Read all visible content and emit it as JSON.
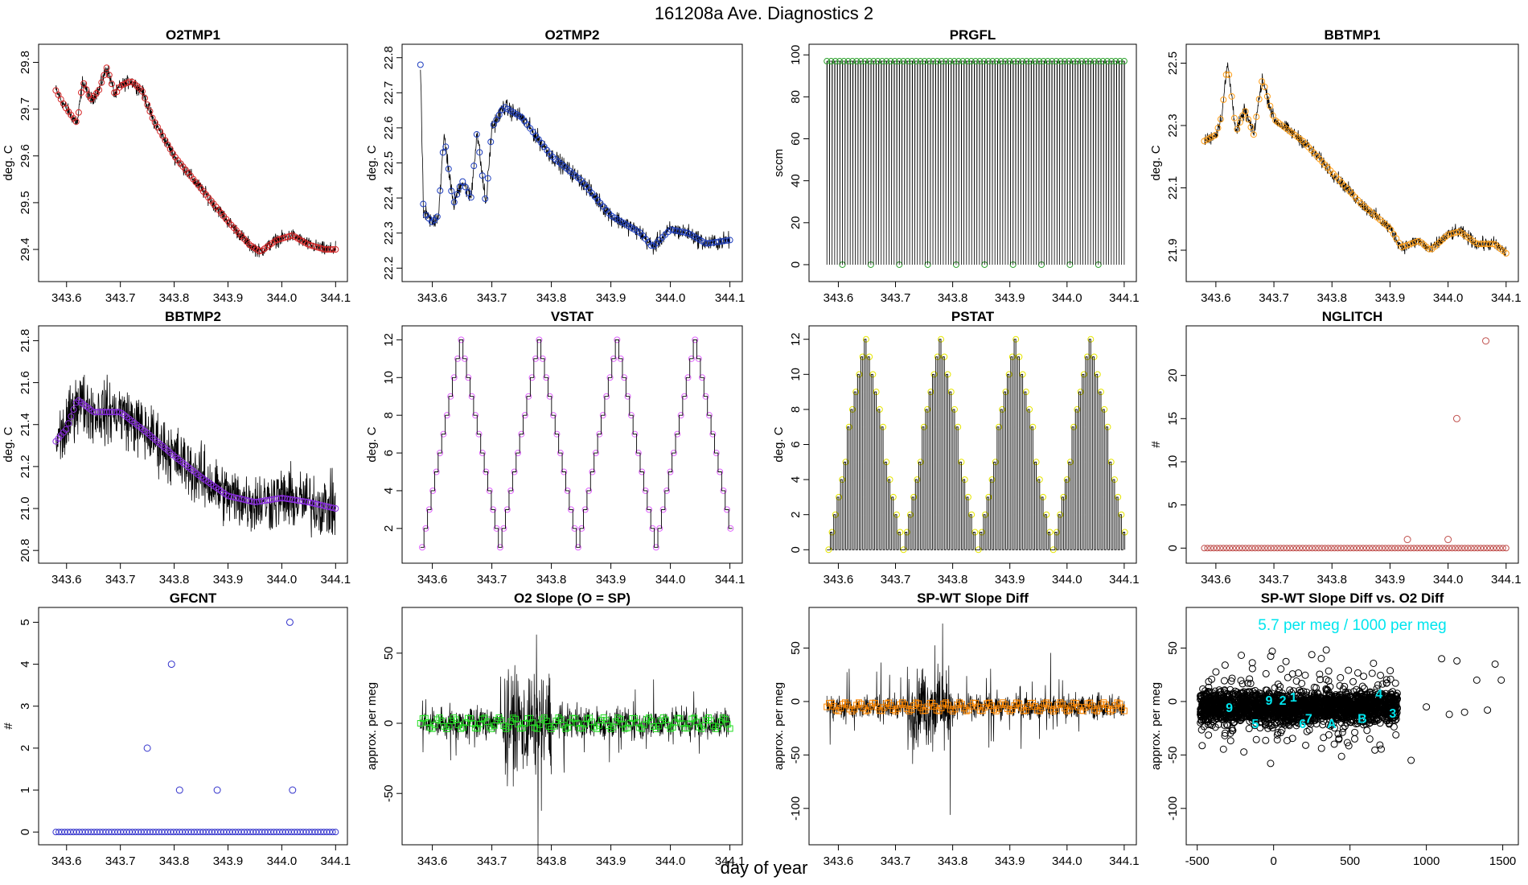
{
  "figure": {
    "title": "161208a   Ave. Diagnostics 2",
    "xlabel": "day of year"
  },
  "chart_data": [
    {
      "type": "line",
      "title": "O2TMP1",
      "ylabel": "deg. C",
      "xlim": [
        343.56,
        344.11
      ],
      "ylim": [
        29.345,
        29.825
      ],
      "xticks": [
        343.6,
        343.7,
        343.8,
        343.9,
        344.0,
        344.1
      ],
      "xticklabels": [
        "343.6",
        "343.7",
        "343.8",
        "343.9",
        "344.0",
        "344.1"
      ],
      "yticks": [
        29.4,
        29.5,
        29.6,
        29.7,
        29.8
      ],
      "yticklabels": [
        "29.4",
        "29.5",
        "29.6",
        "29.7",
        "29.8"
      ],
      "marker_color": "#d62728",
      "x": [
        343.58,
        343.6,
        343.62,
        343.63,
        343.645,
        343.66,
        343.675,
        343.69,
        343.7,
        343.72,
        343.74,
        343.76,
        343.8,
        343.85,
        343.9,
        343.94,
        343.96,
        343.99,
        344.02,
        344.05,
        344.08,
        344.1
      ],
      "y": [
        29.74,
        29.7,
        29.67,
        29.76,
        29.72,
        29.74,
        29.79,
        29.73,
        29.75,
        29.76,
        29.74,
        29.68,
        29.6,
        29.53,
        29.46,
        29.41,
        29.395,
        29.42,
        29.43,
        29.41,
        29.4,
        29.4
      ],
      "noise": 0.012
    },
    {
      "type": "line",
      "title": "O2TMP2",
      "ylabel": "deg. C",
      "xlim": [
        343.56,
        344.11
      ],
      "ylim": [
        22.18,
        22.82
      ],
      "xticks": [
        343.6,
        343.7,
        343.8,
        343.9,
        344.0,
        344.1
      ],
      "xticklabels": [
        "343.6",
        "343.7",
        "343.8",
        "343.9",
        "344.0",
        "344.1"
      ],
      "yticks": [
        22.2,
        22.3,
        22.4,
        22.5,
        22.6,
        22.7,
        22.8
      ],
      "yticklabels": [
        "22.2",
        "22.3",
        "22.4",
        "22.5",
        "22.6",
        "22.7",
        "22.8"
      ],
      "marker_color": "#1f3fbf",
      "x": [
        343.58,
        343.585,
        343.6,
        343.61,
        343.62,
        343.635,
        343.65,
        343.665,
        343.675,
        343.69,
        343.7,
        343.72,
        343.75,
        343.8,
        343.85,
        343.9,
        343.95,
        343.97,
        344.0,
        344.03,
        344.06,
        344.1
      ],
      "y": [
        22.78,
        22.36,
        22.33,
        22.35,
        22.58,
        22.38,
        22.45,
        22.4,
        22.59,
        22.38,
        22.6,
        22.66,
        22.63,
        22.52,
        22.45,
        22.35,
        22.3,
        22.26,
        22.31,
        22.3,
        22.27,
        22.28
      ],
      "noise": 0.02
    },
    {
      "type": "line",
      "title": "PRGFL",
      "ylabel": "sccm",
      "xlim": [
        343.56,
        344.11
      ],
      "ylim": [
        -5,
        102
      ],
      "xticks": [
        343.6,
        343.7,
        343.8,
        343.9,
        344.0,
        344.1
      ],
      "xticklabels": [
        "343.6",
        "343.7",
        "343.8",
        "343.9",
        "344.0",
        "344.1"
      ],
      "yticks": [
        0,
        20,
        40,
        60,
        80,
        100
      ],
      "yticklabels": [
        "0",
        "20",
        "40",
        "60",
        "80",
        "100"
      ],
      "marker_color": "#2ca02c",
      "pattern": "square",
      "high": 97,
      "low": 0
    },
    {
      "type": "line",
      "title": "BBTMP1",
      "ylabel": "deg. C",
      "xlim": [
        343.56,
        344.11
      ],
      "ylim": [
        21.82,
        22.54
      ],
      "xticks": [
        343.6,
        343.7,
        343.8,
        343.9,
        344.0,
        344.1
      ],
      "xticklabels": [
        "343.6",
        "343.7",
        "343.8",
        "343.9",
        "344.0",
        "344.1"
      ],
      "yticks": [
        21.9,
        22.1,
        22.3,
        22.5
      ],
      "yticklabels": [
        "21.9",
        "22.1",
        "22.3",
        "22.5"
      ],
      "marker_color": "#ff9f1a",
      "x": [
        343.58,
        343.6,
        343.61,
        343.62,
        343.635,
        343.65,
        343.665,
        343.68,
        343.7,
        343.75,
        343.8,
        343.85,
        343.9,
        343.92,
        343.95,
        343.97,
        344.0,
        344.02,
        344.05,
        344.08,
        344.1
      ],
      "y": [
        22.25,
        22.27,
        22.33,
        22.5,
        22.28,
        22.35,
        22.27,
        22.45,
        22.32,
        22.25,
        22.15,
        22.05,
        21.97,
        21.91,
        21.93,
        21.9,
        21.95,
        21.96,
        21.92,
        21.92,
        21.89
      ],
      "noise": 0.018
    },
    {
      "type": "line",
      "title": "BBTMP2",
      "ylabel": "deg. C",
      "xlim": [
        343.56,
        344.11
      ],
      "ylim": [
        20.77,
        21.84
      ],
      "xticks": [
        343.6,
        343.7,
        343.8,
        343.9,
        344.0,
        344.1
      ],
      "xticklabels": [
        "343.6",
        "343.7",
        "343.8",
        "343.9",
        "344.0",
        "344.1"
      ],
      "yticks": [
        20.8,
        21.0,
        21.2,
        21.4,
        21.6,
        21.8
      ],
      "yticklabels": [
        "20.8",
        "21.0",
        "21.2",
        "21.4",
        "21.6",
        "21.8"
      ],
      "marker_color": "#8a2be2",
      "x": [
        343.58,
        343.6,
        343.62,
        343.65,
        343.7,
        343.75,
        343.8,
        343.85,
        343.9,
        343.95,
        344.0,
        344.05,
        344.1
      ],
      "y": [
        21.32,
        21.38,
        21.52,
        21.46,
        21.46,
        21.36,
        21.25,
        21.15,
        21.06,
        21.03,
        21.05,
        21.03,
        21.0
      ],
      "noise": 0.12
    },
    {
      "type": "line",
      "title": "VSTAT",
      "ylabel": "deg. C",
      "xlim": [
        343.56,
        344.11
      ],
      "ylim": [
        0.5,
        12.4
      ],
      "xticks": [
        343.6,
        343.7,
        343.8,
        343.9,
        344.0,
        344.1
      ],
      "xticklabels": [
        "343.6",
        "343.7",
        "343.8",
        "343.9",
        "344.0",
        "344.1"
      ],
      "yticks": [
        2,
        4,
        6,
        8,
        10,
        12
      ],
      "yticklabels": [
        "2",
        "4",
        "6",
        "8",
        "10",
        "12"
      ],
      "marker_color": "#e066ff",
      "pattern": "triangle",
      "period": 0.131,
      "x0": 343.58,
      "min": 1,
      "max": 12
    },
    {
      "type": "line",
      "title": "PSTAT",
      "ylabel": "deg. C",
      "xlim": [
        343.56,
        344.11
      ],
      "ylim": [
        -0.4,
        12.4
      ],
      "xticks": [
        343.6,
        343.7,
        343.8,
        343.9,
        344.0,
        344.1
      ],
      "xticklabels": [
        "343.6",
        "343.7",
        "343.8",
        "343.9",
        "344.0",
        "344.1"
      ],
      "yticks": [
        0,
        2,
        4,
        6,
        8,
        10,
        12
      ],
      "yticklabels": [
        "0",
        "2",
        "4",
        "6",
        "8",
        "10",
        "12"
      ],
      "marker_color": "#e6e600",
      "pattern": "triangle-spikes",
      "period": 0.131,
      "x0": 343.58,
      "min": 0,
      "max": 12
    },
    {
      "type": "scatter",
      "title": "NGLITCH",
      "ylabel": "#",
      "xlim": [
        343.56,
        344.11
      ],
      "ylim": [
        -1,
        25
      ],
      "xticks": [
        343.6,
        343.7,
        343.8,
        343.9,
        344.0,
        344.1
      ],
      "xticklabels": [
        "343.6",
        "343.7",
        "343.8",
        "343.9",
        "344.0",
        "344.1"
      ],
      "yticks": [
        0,
        5,
        10,
        15,
        20
      ],
      "yticklabels": [
        "0",
        "5",
        "10",
        "15",
        "20"
      ],
      "marker_color": "#c0504d",
      "baseline": 0,
      "outliers_x": [
        343.93,
        344.0,
        344.015,
        344.065
      ],
      "outliers_y": [
        1,
        1,
        15,
        24
      ]
    },
    {
      "type": "scatter",
      "title": "GFCNT",
      "ylabel": "#",
      "xlim": [
        343.56,
        344.11
      ],
      "ylim": [
        -0.15,
        5.2
      ],
      "xticks": [
        343.6,
        343.7,
        343.8,
        343.9,
        344.0,
        344.1
      ],
      "xticklabels": [
        "343.6",
        "343.7",
        "343.8",
        "343.9",
        "344.0",
        "344.1"
      ],
      "yticks": [
        0,
        1,
        2,
        3,
        4,
        5
      ],
      "yticklabels": [
        "0",
        "1",
        "2",
        "3",
        "4",
        "5"
      ],
      "marker_color": "#3333cc",
      "baseline": 0,
      "outliers_x": [
        343.75,
        343.795,
        343.81,
        343.88,
        344.015,
        344.02
      ],
      "outliers_y": [
        2,
        4,
        1,
        1,
        5,
        1
      ]
    },
    {
      "type": "line",
      "title": "O2 Slope (O = SP)",
      "ylabel": "approx. per meg",
      "xlim": [
        343.56,
        344.11
      ],
      "ylim": [
        -82,
        78
      ],
      "xticks": [
        343.6,
        343.7,
        343.8,
        343.9,
        344.0,
        344.1
      ],
      "xticklabels": [
        "343.6",
        "343.7",
        "343.8",
        "343.9",
        "344.0",
        "344.1"
      ],
      "yticks": [
        -50,
        0,
        50
      ],
      "yticklabels": [
        "-50",
        "0",
        "50"
      ],
      "marker_color": "#22dd22",
      "center": 0,
      "noise": 8
    },
    {
      "type": "line",
      "title": "SP-WT Slope Diff",
      "ylabel": "approx. per meg",
      "xlim": [
        343.56,
        344.11
      ],
      "ylim": [
        -128,
        82
      ],
      "xticks": [
        343.6,
        343.7,
        343.8,
        343.9,
        344.0,
        344.1
      ],
      "xticklabels": [
        "343.6",
        "343.7",
        "343.8",
        "343.9",
        "344.0",
        "344.1"
      ],
      "yticks": [
        -100,
        -50,
        0,
        50
      ],
      "yticklabels": [
        "-100",
        "-50",
        "0",
        "50"
      ],
      "marker_color": "#ff8800",
      "center": -5,
      "noise": 8
    },
    {
      "type": "scatter",
      "title": "SP-WT Slope Diff vs. O2 Diff",
      "ylabel": "approx. per meg",
      "xlim": [
        -530,
        1560
      ],
      "ylim": [
        -128,
        82
      ],
      "xticks": [
        -500,
        0,
        500,
        1000,
        1500
      ],
      "xticklabels": [
        "-500",
        "0",
        "500",
        "1000",
        "1500"
      ],
      "yticks": [
        -100,
        -50,
        0,
        50
      ],
      "yticklabels": [
        "-100",
        "-50",
        "0",
        "50"
      ],
      "marker_color": "#000000",
      "annotation": "5.7 per meg / 1000 per meg",
      "annotation_color": "#00e5ee",
      "cluster_labels": [
        {
          "text": "9",
          "x": -290,
          "y": -10
        },
        {
          "text": "5",
          "x": -120,
          "y": -25
        },
        {
          "text": "9",
          "x": -30,
          "y": -3
        },
        {
          "text": "2",
          "x": 60,
          "y": -3
        },
        {
          "text": "1",
          "x": 130,
          "y": 0
        },
        {
          "text": "6",
          "x": 190,
          "y": -25
        },
        {
          "text": "7",
          "x": 230,
          "y": -20
        },
        {
          "text": "A",
          "x": 380,
          "y": -25
        },
        {
          "text": "B",
          "x": 580,
          "y": -20
        },
        {
          "text": "4",
          "x": 690,
          "y": 3
        },
        {
          "text": "3",
          "x": 780,
          "y": -15
        }
      ]
    }
  ]
}
